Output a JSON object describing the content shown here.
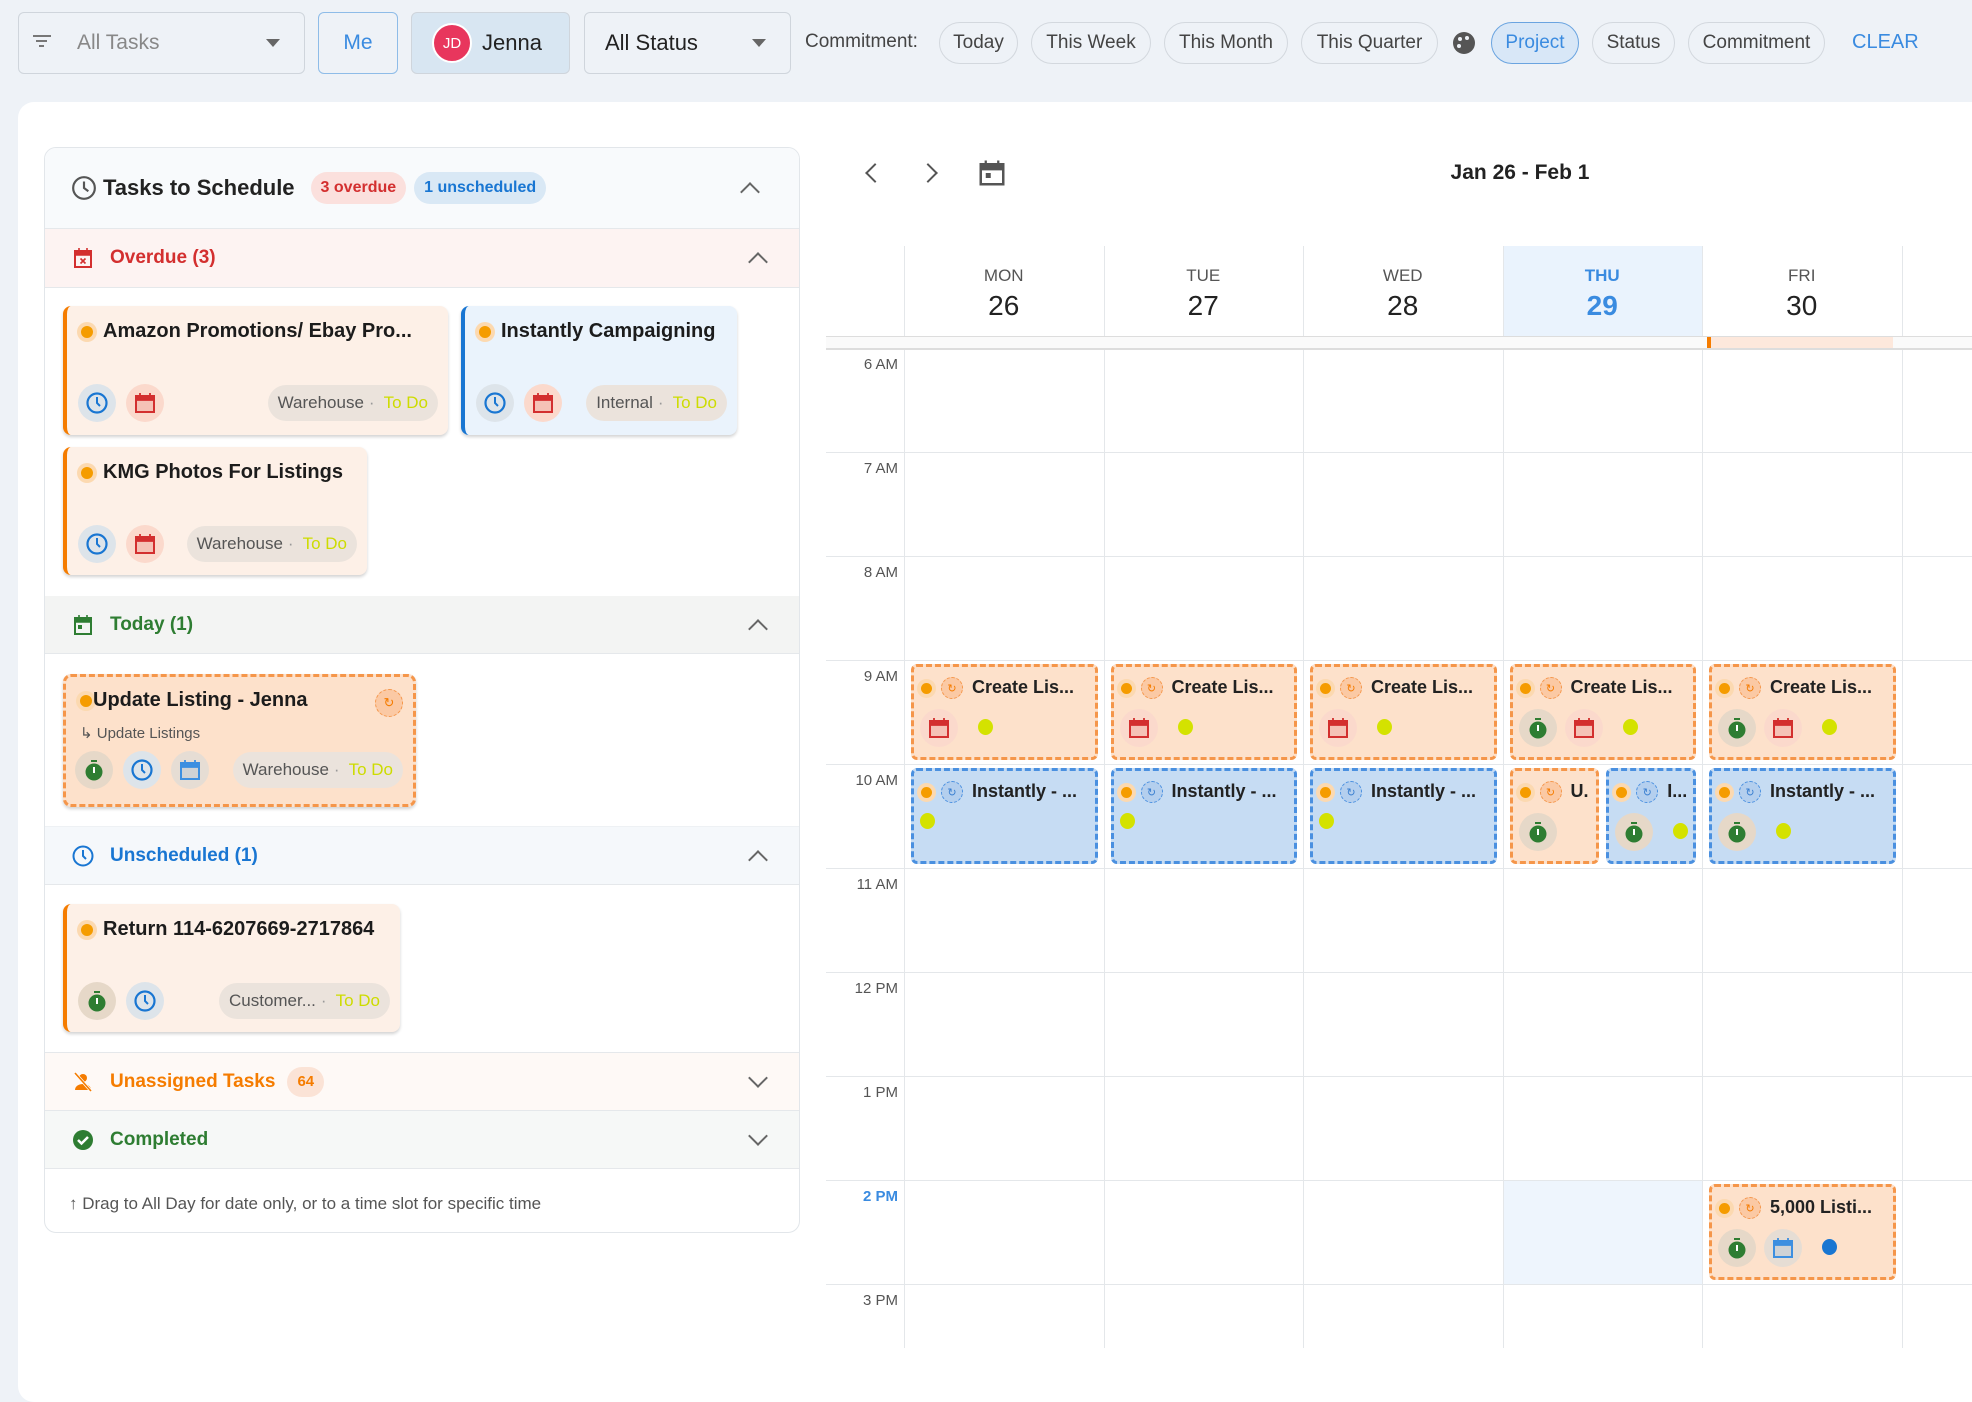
{
  "topbar": {
    "task_filter": "All Tasks",
    "me_label": "Me",
    "user": {
      "initials": "JD",
      "name": "Jenna",
      "avatar_color": "#e8365d"
    },
    "status_filter": "All Status",
    "commitment_label": "Commitment:",
    "commitment_chips": [
      "Today",
      "This Week",
      "This Month",
      "This Quarter"
    ],
    "color_by_chips": [
      {
        "label": "Project",
        "active": true
      },
      {
        "label": "Status",
        "active": false
      },
      {
        "label": "Commitment",
        "active": false
      }
    ],
    "clear_label": "CLEAR"
  },
  "left": {
    "title": "Tasks to Schedule",
    "overdue_badge": "3 overdue",
    "unscheduled_badge": "1 unscheduled",
    "sections": {
      "overdue": "Overdue (3)",
      "today": "Today (1)",
      "unscheduled": "Unscheduled (1)",
      "unassigned": "Unassigned Tasks",
      "unassigned_count": "64",
      "completed": "Completed"
    },
    "cards": [
      {
        "title": "Amazon Promotions/ Ebay Pro...",
        "color": "orange",
        "icons": [
          "clock",
          "calendar-red"
        ],
        "project": "Warehouse",
        "status": "To Do"
      },
      {
        "title": "Instantly Campaigning",
        "color": "blue",
        "icons": [
          "clock",
          "calendar-red"
        ],
        "project": "Internal",
        "status": "To Do"
      },
      {
        "title": "KMG Photos For Listings",
        "color": "orange",
        "icons": [
          "clock",
          "calendar-red"
        ],
        "project": "Warehouse",
        "status": "To Do"
      },
      {
        "title": "Update Listing - Jenna",
        "subtitle": "Update Listings",
        "color": "dash",
        "recurring": true,
        "icons": [
          "timer",
          "clock",
          "calendar-blue"
        ],
        "project": "Warehouse",
        "status": "To Do"
      },
      {
        "title": "Return 114-6207669-2717864",
        "color": "orange",
        "icons": [
          "timer",
          "clock"
        ],
        "project": "Customer...",
        "status": "To Do"
      }
    ],
    "footer_hint": "↑ Drag to All Day for date only, or to a time slot for specific time"
  },
  "calendar": {
    "range_title": "Jan 26 - Feb 1",
    "days": [
      {
        "name": "MON",
        "date": "26"
      },
      {
        "name": "TUE",
        "date": "27"
      },
      {
        "name": "WED",
        "date": "28"
      },
      {
        "name": "THU",
        "date": "29",
        "today": true
      },
      {
        "name": "FRI",
        "date": "30"
      }
    ],
    "hours": [
      "6 AM",
      "7 AM",
      "8 AM",
      "9 AM",
      "10 AM",
      "11 AM",
      "12 PM",
      "1 PM",
      "2 PM",
      "3 PM"
    ],
    "current_hour": "2 PM",
    "events": [
      {
        "day": 0,
        "start": 9,
        "title": "Create Lis...",
        "color": "orange",
        "icons": [
          "calendar-red",
          "status-dot"
        ]
      },
      {
        "day": 1,
        "start": 9,
        "title": "Create Lis...",
        "color": "orange",
        "icons": [
          "calendar-red",
          "status-dot"
        ]
      },
      {
        "day": 2,
        "start": 9,
        "title": "Create Lis...",
        "color": "orange",
        "icons": [
          "calendar-red",
          "status-dot"
        ]
      },
      {
        "day": 3,
        "start": 9,
        "title": "Create Lis...",
        "color": "orange",
        "icons": [
          "timer",
          "calendar-red",
          "status-dot"
        ]
      },
      {
        "day": 4,
        "start": 9,
        "title": "Create Lis...",
        "color": "orange",
        "icons": [
          "timer",
          "calendar-red",
          "status-dot"
        ]
      },
      {
        "day": 0,
        "start": 10,
        "title": "Instantly - ...",
        "color": "blue",
        "icons": [
          "status-dot-top"
        ]
      },
      {
        "day": 1,
        "start": 10,
        "title": "Instantly - ...",
        "color": "blue",
        "icons": [
          "status-dot-top"
        ]
      },
      {
        "day": 2,
        "start": 10,
        "title": "Instantly - ...",
        "color": "blue",
        "icons": [
          "status-dot-top"
        ]
      },
      {
        "day": 3,
        "start": 10,
        "title": "U.",
        "color": "orange",
        "half": 0,
        "icons": [
          "timer"
        ]
      },
      {
        "day": 3,
        "start": 10,
        "title": "I...",
        "color": "blue",
        "half": 1,
        "icons": [
          "timer",
          "status-dot"
        ]
      },
      {
        "day": 4,
        "start": 10,
        "title": "Instantly - ...",
        "color": "blue",
        "icons": [
          "timer",
          "status-dot"
        ]
      },
      {
        "day": 4,
        "start": 14,
        "title": "5,000 Listi...",
        "color": "orange",
        "icons": [
          "timer",
          "calendar-blue",
          "blue-dot"
        ]
      }
    ]
  }
}
